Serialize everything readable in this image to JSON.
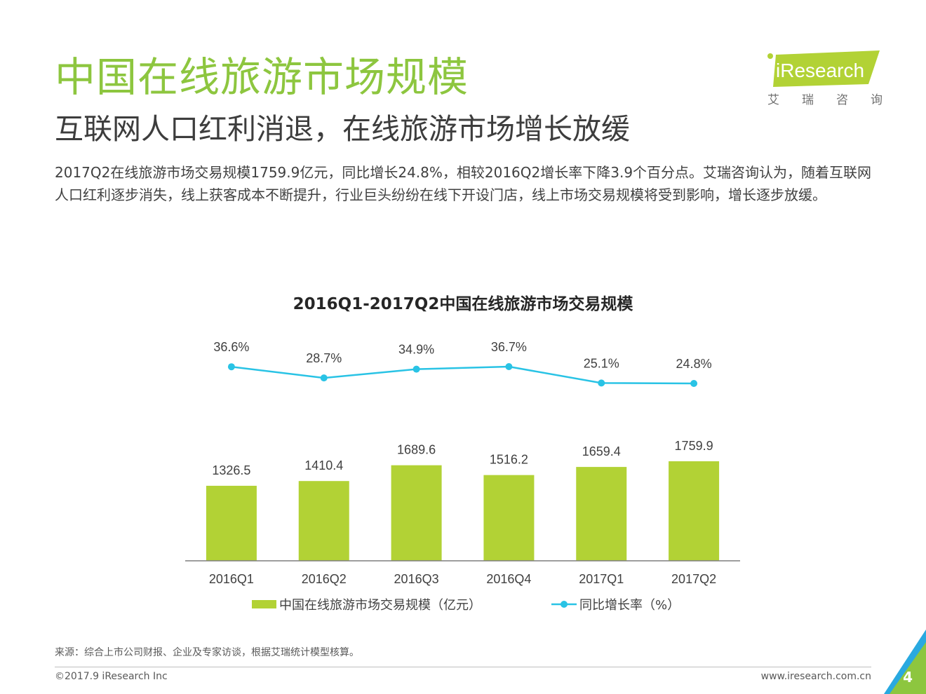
{
  "header": {
    "title": "中国在线旅游市场规模",
    "subtitle": "互联网人口红利消退，在线旅游市场增长放缓",
    "summary": "2017Q2在线旅游市场交易规模1759.9亿元，同比增长24.8%，相较2016Q2增长率下降3.9个百分点。艾瑞咨询认为，随着互联网人口红利逐步消失，线上获客成本不断提升，行业巨头纷纷在线下开设门店，线上市场交易规模将受到影响，增长逐步放缓。"
  },
  "logo": {
    "brand": "iResearch",
    "sub": "艾瑞咨询",
    "color": "#b2d235"
  },
  "chart_data": {
    "type": "bar+line",
    "title": "2016Q1-2017Q2中国在线旅游市场交易规模",
    "categories": [
      "2016Q1",
      "2016Q2",
      "2016Q3",
      "2016Q4",
      "2017Q1",
      "2017Q2"
    ],
    "series": [
      {
        "name": "中国在线旅游市场交易规模（亿元）",
        "type": "bar",
        "values": [
          1326.5,
          1410.4,
          1689.6,
          1516.2,
          1659.4,
          1759.9
        ],
        "labels": [
          "1326.5",
          "1410.4",
          "1689.6",
          "1516.2",
          "1659.4",
          "1759.9"
        ],
        "color": "#b2d235"
      },
      {
        "name": "同比增长率（%）",
        "type": "line",
        "values": [
          36.6,
          28.7,
          34.9,
          36.7,
          25.1,
          24.8
        ],
        "labels": [
          "36.6%",
          "28.7%",
          "34.9%",
          "36.7%",
          "25.1%",
          "24.8%"
        ],
        "color": "#29c3e5"
      }
    ],
    "bar_ylim": [
      0,
      2800
    ],
    "line_ylim": [
      0,
      300
    ],
    "legend": "bottom",
    "grid": false
  },
  "footer": {
    "source": "来源：综合上市公司财报、企业及专家访谈，根据艾瑞统计模型核算。",
    "copyright": "©2017.9 iResearch Inc",
    "website": "www.iresearch.com.cn",
    "page_number": "4"
  },
  "colors": {
    "title": "#8dc63f",
    "bar": "#b2d235",
    "line": "#29c3e5",
    "corner_blue": "#29a9e0",
    "corner_green": "#8dc63f"
  }
}
